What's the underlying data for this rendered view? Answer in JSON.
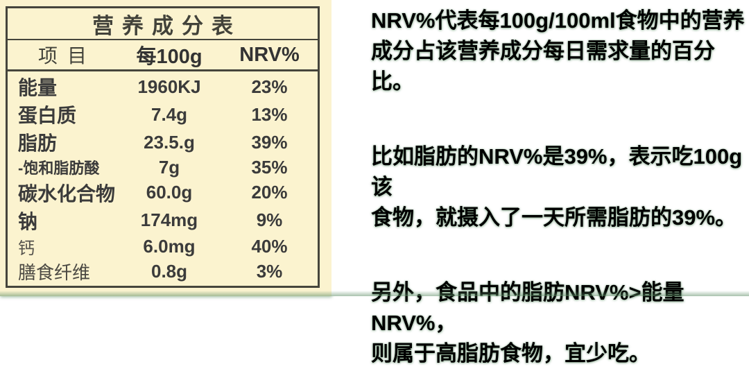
{
  "table": {
    "title": "营养成分表",
    "columns": {
      "item": "项目",
      "per100g": "每100g",
      "nrv": "NRV%"
    },
    "rows": [
      {
        "item": "能量",
        "per100g": "1960KJ",
        "nrv": "23%"
      },
      {
        "item": "蛋白质",
        "per100g": "7.4g",
        "nrv": "13%"
      },
      {
        "item": "脂肪",
        "per100g": "23.5.g",
        "nrv": "39%"
      },
      {
        "item": "-饱和脂肪酸",
        "per100g": "7g",
        "nrv": "35%"
      },
      {
        "item": "碳水化合物",
        "per100g": "60.0g",
        "nrv": "20%"
      },
      {
        "item": "钠",
        "per100g": "174mg",
        "nrv": "9%"
      },
      {
        "item": "钙",
        "per100g": "6.0mg",
        "nrv": "40%"
      },
      {
        "item": "膳食纤维",
        "per100g": "0.8g",
        "nrv": "3%"
      }
    ]
  },
  "explanation": {
    "paragraphs": [
      "NRV%代表每100g/100ml食物中的营养\n成分占该营养成分每日需求量的百分比。",
      "比如脂肪的NRV%是39%，表示吃100g该\n食物，就摄入了一天所需脂肪的39%。",
      "另外，食品中的脂肪NRV%>能量NRV%，\n则属于高脂肪食物，宜少吃。"
    ]
  },
  "colors": {
    "label_background": "#fbf3cf",
    "table_border": "#45453c",
    "table_text": "#3b3b3b",
    "body_text": "#000000",
    "matte_green": "#5f8f68"
  }
}
